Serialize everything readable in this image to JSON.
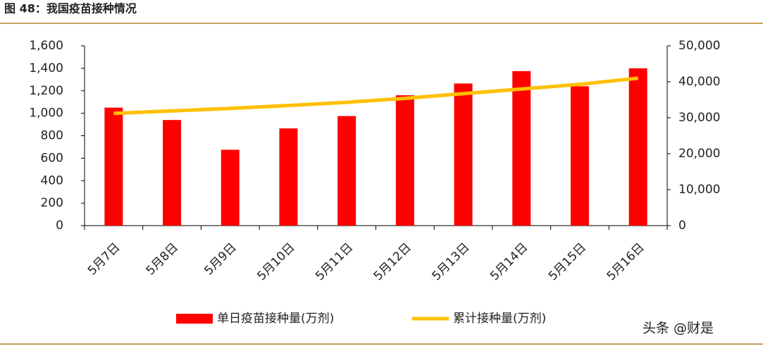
{
  "chart_data": {
    "type": "bar",
    "title": "图 48：我国疫苗接种情况",
    "categories": [
      "5月7日",
      "5月8日",
      "5月9日",
      "5月10日",
      "5月11日",
      "5月12日",
      "5月13日",
      "5月14日",
      "5月15日",
      "5月16日"
    ],
    "series": [
      {
        "name": "单日疫苗接种量(万剂)",
        "type": "bar",
        "color": "#ff0000",
        "values": [
          1050,
          940,
          675,
          865,
          975,
          1160,
          1265,
          1375,
          1240,
          1400
        ]
      },
      {
        "name": "累计接种量(万剂)",
        "type": "line",
        "axis": "y2",
        "color": "#ffc000",
        "values": [
          31200,
          31900,
          32600,
          33400,
          34300,
          35400,
          36700,
          38000,
          39300,
          41000
        ]
      }
    ],
    "ylim": [
      0,
      1600
    ],
    "yticks": [
      0,
      200,
      400,
      600,
      800,
      {
        "value": 1000,
        "label": "1,000"
      },
      {
        "value": 1200,
        "label": "1,200"
      },
      {
        "value": 1400,
        "label": "1,400"
      },
      {
        "value": 1600,
        "label": "1,600"
      }
    ],
    "y2lim": [
      0,
      50000
    ],
    "y2ticks": [
      0,
      {
        "value": 10000,
        "label": "10,000"
      },
      {
        "value": 20000,
        "label": "20,000"
      },
      {
        "value": 30000,
        "label": "30,000"
      },
      {
        "value": 40000,
        "label": "40,000"
      },
      {
        "value": 50000,
        "label": "50,000"
      }
    ],
    "legend": "bottom",
    "watermark": "头条 @财是"
  }
}
